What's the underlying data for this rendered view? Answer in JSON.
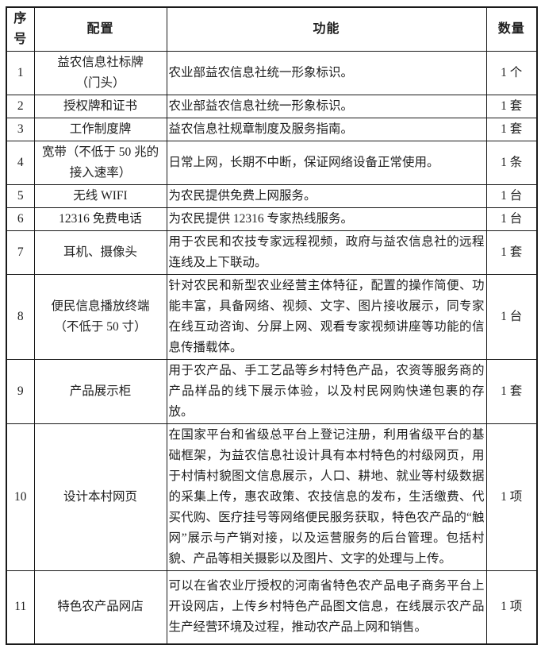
{
  "table": {
    "headers": [
      "序号",
      "配置",
      "功能",
      "数量"
    ],
    "rows": [
      {
        "no": "1",
        "config": "益农信息社标牌\n（门头）",
        "func": "农业部益农信息社统一形象标识。",
        "qty": "1 个"
      },
      {
        "no": "2",
        "config": "授权牌和证书",
        "func": "农业部益农信息社统一形象标识。",
        "qty": "1 套"
      },
      {
        "no": "3",
        "config": "工作制度牌",
        "func": "益农信息社规章制度及服务指南。",
        "qty": "1 套"
      },
      {
        "no": "4",
        "config": "宽带（不低于 50 兆的\n接入速率）",
        "func": "日常上网，长期不中断，保证网络设备正常使用。",
        "qty": "1 条"
      },
      {
        "no": "5",
        "config": "无线 WIFI",
        "func": "为农民提供免费上网服务。",
        "qty": "1 台"
      },
      {
        "no": "6",
        "config": "12316 免费电话",
        "func": "为农民提供 12316 专家热线服务。",
        "qty": "1 台"
      },
      {
        "no": "7",
        "config": "耳机、摄像头",
        "func": "用于农民和农技专家远程视频，政府与益农信息社的远程连线及上下联动。",
        "qty": "1 套"
      },
      {
        "no": "8",
        "config": "便民信息播放终端\n（不低于 50 寸）",
        "func": "针对农民和新型农业经营主体特征，配置的操作简便、功能丰富，具备网络、视频、文字、图片接收展示，同专家在线互动咨询、分屏上网、观看专家视频讲座等功能的信息传播载体。",
        "qty": "1 台"
      },
      {
        "no": "9",
        "config": "产品展示柜",
        "func": "用于农产品、手工艺品等乡村特色产品，农资等服务商的产品样品的线下展示体验，以及村民网购快递包裹的存放。",
        "qty": "1 套"
      },
      {
        "no": "10",
        "config": "设计本村网页",
        "func": "在国家平台和省级总平台上登记注册，利用省级平台的基础框架，为益农信息社设计具有本村特色的村级网页，用于村情村貌图文信息展示，人口、耕地、就业等村级数据的采集上传，惠农政策、农技信息的发布，生活缴费、代买代购、医疗挂号等网络便民服务获取，特色农产品的“触网”展示与产销对接，以及运营服务的后台管理。包括村貌、产品等相关摄影以及图片、文字的处理与上传。",
        "qty": "1 项"
      },
      {
        "no": "11",
        "config": "特色农产品网店",
        "func": "可以在省农业厅授权的河南省特色农产品电子商务平台上开设网店，上传乡村特色产品图文信息，在线展示农产品生产经营环境及过程，推动农产品上网和销售。",
        "qty": "1 项"
      }
    ]
  }
}
